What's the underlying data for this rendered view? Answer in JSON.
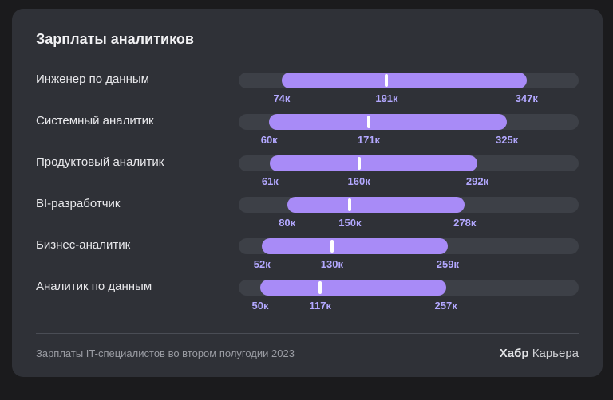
{
  "footer": {
    "note": "Зарплаты IT-специалистов во втором полугодии 2023",
    "brand_strong": "Хабр",
    "brand_rest": "Карьера"
  },
  "colors": {
    "background": "#1b1b1d",
    "card": "#2f3137",
    "track": "#3d4047",
    "range": "#a88bf7",
    "median": "#ffffff",
    "tick_label": "#b3a8ff"
  },
  "chart_data": {
    "type": "range-bar",
    "title": "Зарплаты аналитиков",
    "xlim": [
      26,
      405
    ],
    "grid": false,
    "categories": [
      "Инженер по данным",
      "Системный аналитик",
      "Продуктовый аналитик",
      "BI-разработчик",
      "Бизнес-аналитик",
      "Аналитик по данным"
    ],
    "series": [
      {
        "name": "",
        "values": [
          {
            "min": 74,
            "median": 191,
            "max": 347
          },
          {
            "min": 60,
            "median": 171,
            "max": 325
          },
          {
            "min": 61,
            "median": 160,
            "max": 292
          },
          {
            "min": 80,
            "median": 150,
            "max": 278
          },
          {
            "min": 52,
            "median": 130,
            "max": 259
          },
          {
            "min": 50,
            "median": 117,
            "max": 257
          }
        ]
      }
    ],
    "value_labels": [
      [
        "74к",
        "191к",
        "347к"
      ],
      [
        "60к",
        "171к",
        "325к"
      ],
      [
        "61к",
        "160к",
        "292к"
      ],
      [
        "80к",
        "150к",
        "278к"
      ],
      [
        "52к",
        "130к",
        "259к"
      ],
      [
        "50к",
        "117к",
        "257к"
      ]
    ]
  }
}
